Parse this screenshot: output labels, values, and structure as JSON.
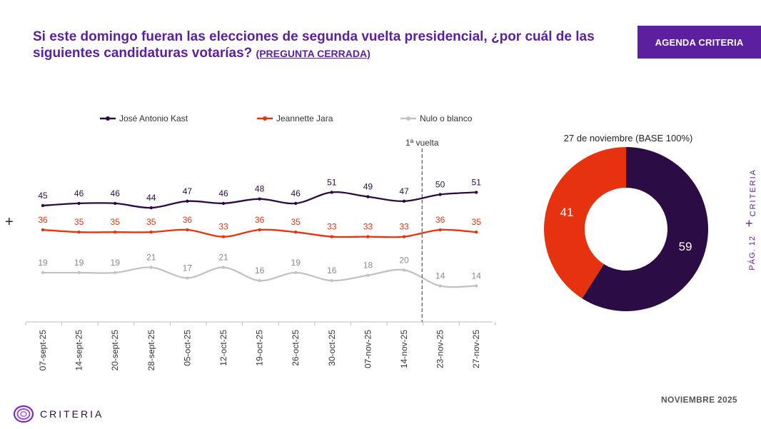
{
  "header": {
    "title": "Si este domingo fueran las elecciones de segunda vuelta presidencial, ¿por cuál de las siguientes candidaturas votarías?",
    "question_type": "(PREGUNTA CERRADA)",
    "badge": "AGENDA CRITERIA"
  },
  "footer": {
    "date": "NOVIEMBRE 2025",
    "brand": "CRITERIA"
  },
  "side": {
    "page": "PÁG. 12",
    "brand": "CRITERIA",
    "plus": "+"
  },
  "left_plus": "+",
  "colors": {
    "kast": "#2b0c45",
    "jara": "#e6320e",
    "nulo": "#c2c2c2",
    "accent": "#5b1fa0"
  },
  "chart_data": [
    {
      "type": "line",
      "categories": [
        "07-sept-25",
        "14-sept-25",
        "20-sept-25",
        "28-sept-25",
        "05-oct-25",
        "12-oct-25",
        "19-oct-25",
        "26-oct-25",
        "30-oct-25",
        "07-nov-25",
        "14-nov-25",
        "23-nov-25",
        "27-nov-25"
      ],
      "series": [
        {
          "name": "José Antonio Kast",
          "color": "#2b0c45",
          "values": [
            45,
            46,
            46,
            44,
            47,
            46,
            48,
            46,
            51,
            49,
            47,
            50,
            51
          ]
        },
        {
          "name": "Jeannette Jara",
          "color": "#e6320e",
          "values": [
            36,
            35,
            35,
            35,
            36,
            33,
            36,
            35,
            33,
            33,
            33,
            36,
            35
          ]
        },
        {
          "name": "Nulo o blanco",
          "color": "#c2c2c2",
          "values": [
            19,
            19,
            19,
            21,
            17,
            21,
            16,
            19,
            16,
            18,
            20,
            14,
            14
          ]
        }
      ],
      "annotations": [
        {
          "label": "1ª vuelta",
          "after_category": "14-nov-25"
        }
      ],
      "legend": "top"
    },
    {
      "type": "pie",
      "title": "27 de noviembre (BASE 100%)",
      "slices": [
        {
          "label": "José Antonio Kast",
          "value": 59,
          "color": "#2b0c45"
        },
        {
          "label": "Jeannette Jara",
          "value": 41,
          "color": "#e6320e"
        }
      ]
    }
  ]
}
